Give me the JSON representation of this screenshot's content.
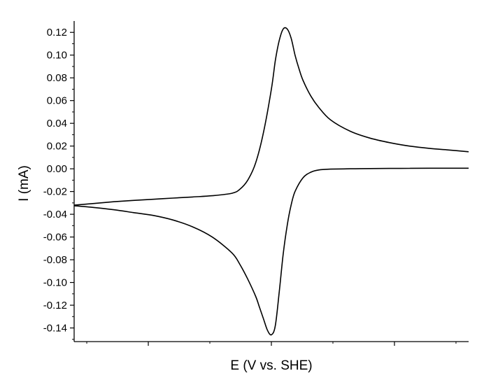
{
  "chart_data": {
    "type": "line",
    "title": "",
    "xlabel": "E (V vs. SHE)",
    "ylabel": "I (mA)",
    "x_tick_labels_shown": false,
    "xlim": [
      0,
      1
    ],
    "ylim": [
      -0.152,
      0.13
    ],
    "y_ticks": [
      {
        "value": 0.12,
        "label": "0.12"
      },
      {
        "value": 0.1,
        "label": "0.10"
      },
      {
        "value": 0.08,
        "label": "0.08"
      },
      {
        "value": 0.06,
        "label": "0.06"
      },
      {
        "value": 0.04,
        "label": "0.04"
      },
      {
        "value": 0.02,
        "label": "0.02"
      },
      {
        "value": 0.0,
        "label": "0.00"
      },
      {
        "value": -0.02,
        "label": "-0.02"
      },
      {
        "value": -0.04,
        "label": "-0.04"
      },
      {
        "value": -0.06,
        "label": "-0.06"
      },
      {
        "value": -0.08,
        "label": "-0.08"
      },
      {
        "value": -0.1,
        "label": "-0.10"
      },
      {
        "value": -0.12,
        "label": "-0.12"
      },
      {
        "value": -0.14,
        "label": "-0.14"
      }
    ],
    "grid": false,
    "line_color": "#000000",
    "series": [
      {
        "x": [
          0.0,
          0.05,
          0.1,
          0.15,
          0.2,
          0.25,
          0.3,
          0.35,
          0.4,
          0.42,
          0.44,
          0.46,
          0.48,
          0.5,
          0.51,
          0.52,
          0.53,
          0.54,
          0.55,
          0.56,
          0.57,
          0.58,
          0.6,
          0.62,
          0.65,
          0.7,
          0.75,
          0.8,
          0.85,
          0.9,
          0.95,
          1.0
        ],
        "y": [
          -0.032,
          -0.0305,
          -0.029,
          -0.0278,
          -0.0268,
          -0.0258,
          -0.0248,
          -0.0237,
          -0.0215,
          -0.018,
          -0.01,
          0.005,
          0.032,
          0.07,
          0.095,
          0.113,
          0.123,
          0.123,
          0.115,
          0.1,
          0.088,
          0.078,
          0.064,
          0.054,
          0.043,
          0.033,
          0.027,
          0.023,
          0.02,
          0.018,
          0.0165,
          0.015
        ]
      },
      {
        "x": [
          1.0,
          0.95,
          0.9,
          0.85,
          0.8,
          0.75,
          0.7,
          0.65,
          0.62,
          0.6,
          0.58,
          0.56,
          0.55,
          0.54,
          0.53,
          0.52,
          0.51,
          0.5,
          0.49,
          0.48,
          0.47,
          0.46,
          0.44,
          0.42,
          0.4,
          0.35,
          0.3,
          0.25,
          0.2,
          0.15,
          0.1,
          0.05,
          0.0
        ],
        "y": [
          0.0005,
          0.0005,
          0.0005,
          0.0004,
          0.0003,
          0.0002,
          0.0,
          -0.0003,
          -0.001,
          -0.003,
          -0.008,
          -0.02,
          -0.032,
          -0.05,
          -0.075,
          -0.108,
          -0.138,
          -0.146,
          -0.142,
          -0.132,
          -0.122,
          -0.112,
          -0.097,
          -0.084,
          -0.074,
          -0.06,
          -0.051,
          -0.045,
          -0.041,
          -0.0385,
          -0.036,
          -0.034,
          -0.0325
        ]
      }
    ]
  }
}
